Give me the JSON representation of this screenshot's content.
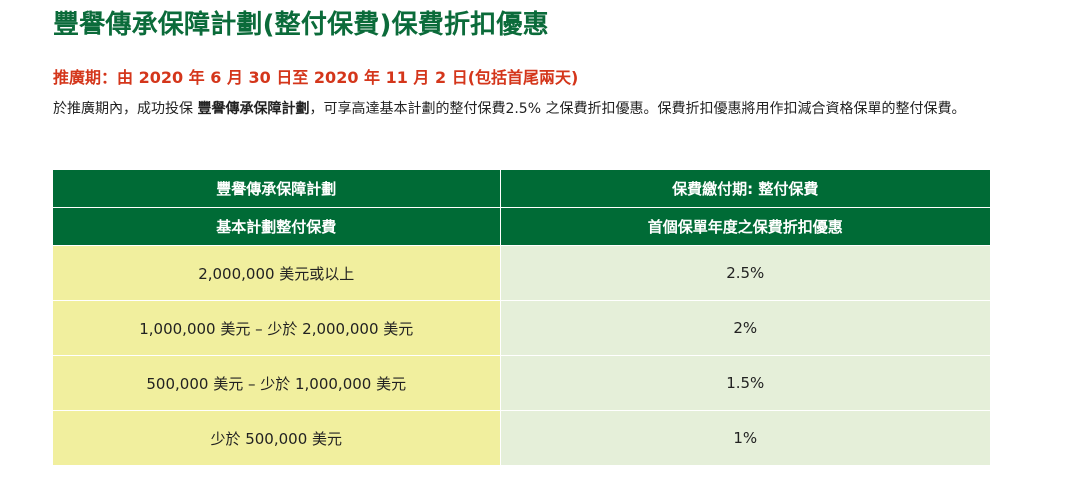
{
  "title": "豐譽傳承保障計劃(整付保費)保費折扣優惠",
  "promo_period": "推廣期：由 2020 年 6 月 30 日至 2020 年 11 月 2 日(包括首尾兩天)",
  "description": {
    "part1": "於推廣期內，成功投保 ",
    "plan_name": "豐譽傳承保障計劃",
    "part2": "，可享高達基本計劃的整付保費2.5% 之保費折扣優惠。保費折扣優惠將用作扣減合資格保單的整付保費。"
  },
  "table": {
    "header_row1": [
      "豐譽傳承保障計劃",
      "保費繳付期: 整付保費"
    ],
    "header_row2": [
      "基本計劃整付保費",
      "首個保單年度之保費折扣優惠"
    ],
    "rows": [
      {
        "amount": "2,000,000 美元或以上",
        "discount": "2.5%"
      },
      {
        "amount": "1,000,000 美元 – 少於 2,000,000 美元",
        "discount": "2%"
      },
      {
        "amount": "500,000 美元 – 少於 1,000,000 美元",
        "discount": "1.5%"
      },
      {
        "amount": "少於 500,000 美元",
        "discount": "1%"
      }
    ]
  },
  "colors": {
    "title": "#0b6b3a",
    "promo": "#d4361b",
    "header_bg": "#006b36",
    "amount_bg": "#f1ef9e",
    "rate_bg": "#e5efd9"
  }
}
